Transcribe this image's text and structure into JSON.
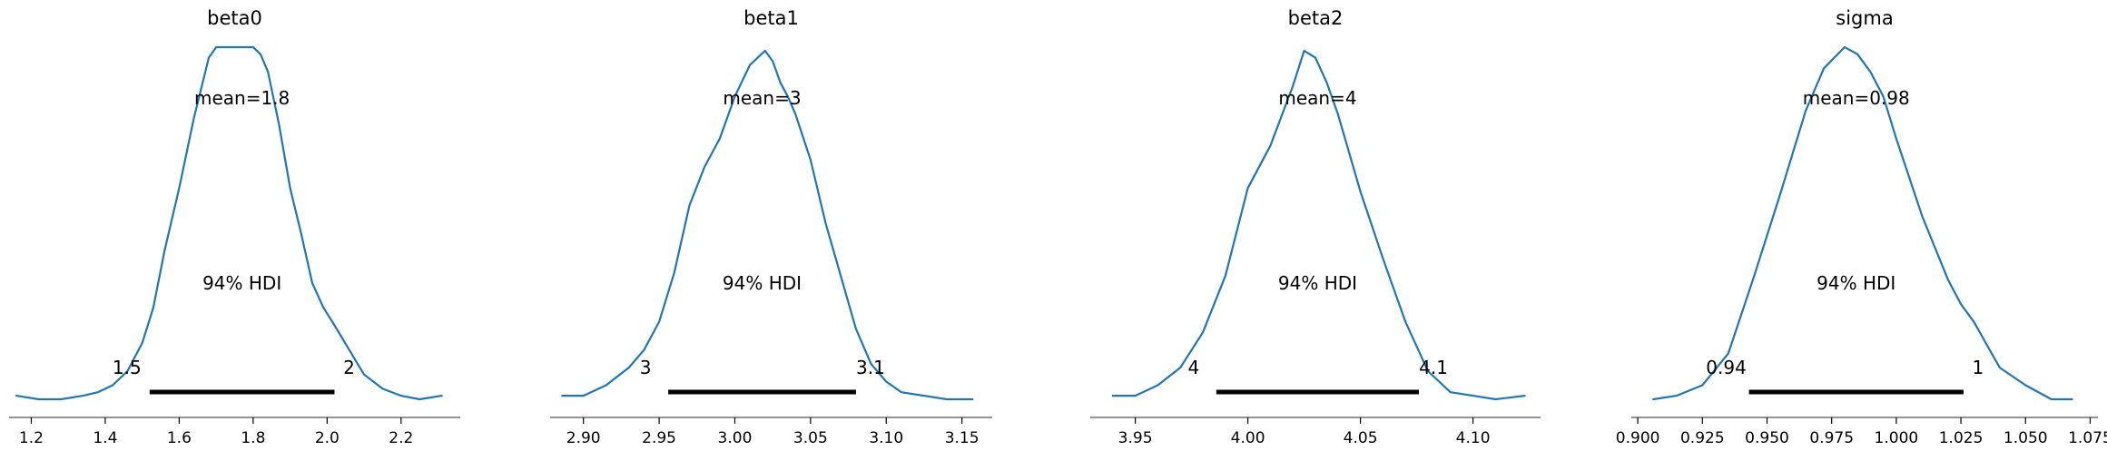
{
  "figure": {
    "line_color": "#1f77b4",
    "hdi_color": "#000000",
    "axis_color": "#555555"
  },
  "chart_data": [
    {
      "type": "line",
      "title": "beta0",
      "mean_label": "mean=1.8",
      "hdi_label": "94% HDI",
      "hdi": [
        1.52,
        2.02
      ],
      "hdi_low_label": "1.5",
      "hdi_high_label": "2",
      "xlim": [
        1.14,
        2.36
      ],
      "ticks": [
        1.2,
        1.4,
        1.6,
        1.8,
        2.0,
        2.2
      ],
      "tick_labels": [
        "1.2",
        "1.4",
        "1.6",
        "1.8",
        "2.0",
        "2.2"
      ],
      "x": [
        1.16,
        1.22,
        1.28,
        1.34,
        1.38,
        1.42,
        1.46,
        1.5,
        1.53,
        1.56,
        1.6,
        1.64,
        1.68,
        1.7,
        1.72,
        1.74,
        1.76,
        1.78,
        1.8,
        1.82,
        1.84,
        1.87,
        1.9,
        1.93,
        1.96,
        1.99,
        2.02,
        2.06,
        2.1,
        2.15,
        2.2,
        2.25,
        2.31
      ],
      "y": [
        0.01,
        0.0,
        0.0,
        0.01,
        0.02,
        0.04,
        0.08,
        0.16,
        0.26,
        0.42,
        0.6,
        0.8,
        0.97,
        1.0,
        1.0,
        1.0,
        1.0,
        1.0,
        1.0,
        0.98,
        0.93,
        0.78,
        0.6,
        0.47,
        0.33,
        0.26,
        0.21,
        0.14,
        0.07,
        0.03,
        0.01,
        0.0,
        0.01
      ]
    },
    {
      "type": "line",
      "title": "beta1",
      "mean_label": "mean=3",
      "hdi_label": "94% HDI",
      "hdi": [
        2.956,
        3.08
      ],
      "hdi_low_label": "3",
      "hdi_high_label": "3.1",
      "xlim": [
        2.878,
        3.17
      ],
      "ticks": [
        2.9,
        2.95,
        3.0,
        3.05,
        3.1,
        3.15
      ],
      "tick_labels": [
        "2.90",
        "2.95",
        "3.00",
        "3.05",
        "3.10",
        "3.15"
      ],
      "x": [
        2.886,
        2.9,
        2.915,
        2.93,
        2.94,
        2.95,
        2.96,
        2.97,
        2.98,
        2.99,
        3.0,
        3.01,
        3.02,
        3.025,
        3.03,
        3.035,
        3.04,
        3.05,
        3.06,
        3.07,
        3.08,
        3.09,
        3.1,
        3.11,
        3.125,
        3.14,
        3.157
      ],
      "y": [
        0.01,
        0.01,
        0.04,
        0.09,
        0.14,
        0.22,
        0.36,
        0.55,
        0.66,
        0.74,
        0.86,
        0.95,
        0.99,
        0.96,
        0.9,
        0.86,
        0.81,
        0.68,
        0.5,
        0.35,
        0.2,
        0.1,
        0.05,
        0.02,
        0.01,
        0.0,
        0.0
      ]
    },
    {
      "type": "line",
      "title": "beta2",
      "mean_label": "mean=4",
      "hdi_label": "94% HDI",
      "hdi": [
        3.986,
        4.076
      ],
      "hdi_low_label": "4",
      "hdi_high_label": "4.1",
      "xlim": [
        3.93,
        4.13
      ],
      "ticks": [
        3.95,
        4.0,
        4.05,
        4.1
      ],
      "tick_labels": [
        "3.95",
        "4.00",
        "4.05",
        "4.10"
      ],
      "x": [
        3.94,
        3.95,
        3.96,
        3.97,
        3.98,
        3.99,
        4.0,
        4.01,
        4.02,
        4.025,
        4.03,
        4.035,
        4.04,
        4.05,
        4.06,
        4.07,
        4.08,
        4.09,
        4.1,
        4.11,
        4.123
      ],
      "y": [
        0.01,
        0.01,
        0.04,
        0.09,
        0.19,
        0.35,
        0.6,
        0.72,
        0.89,
        0.99,
        0.97,
        0.9,
        0.81,
        0.59,
        0.4,
        0.22,
        0.08,
        0.02,
        0.01,
        0.0,
        0.01
      ]
    },
    {
      "type": "line",
      "title": "sigma",
      "mean_label": "mean=0.98",
      "hdi_label": "94% HDI",
      "hdi": [
        0.943,
        1.026
      ],
      "hdi_low_label": "0.94",
      "hdi_high_label": "1",
      "xlim": [
        0.8975,
        1.078
      ],
      "ticks": [
        0.9,
        0.925,
        0.95,
        0.975,
        1.0,
        1.025,
        1.05,
        1.075
      ],
      "tick_labels": [
        "0.900",
        "0.925",
        "0.950",
        "0.975",
        "1.000",
        "1.025",
        "1.050",
        "1.075"
      ],
      "x": [
        0.906,
        0.915,
        0.925,
        0.935,
        0.945,
        0.955,
        0.965,
        0.972,
        0.98,
        0.985,
        0.99,
        0.995,
        1.0,
        1.01,
        1.02,
        1.025,
        1.03,
        1.04,
        1.05,
        1.06,
        1.068
      ],
      "y": [
        0.0,
        0.01,
        0.04,
        0.13,
        0.35,
        0.58,
        0.82,
        0.94,
        1.0,
        0.98,
        0.93,
        0.86,
        0.74,
        0.52,
        0.34,
        0.27,
        0.22,
        0.09,
        0.04,
        0.0,
        0.0
      ]
    }
  ]
}
